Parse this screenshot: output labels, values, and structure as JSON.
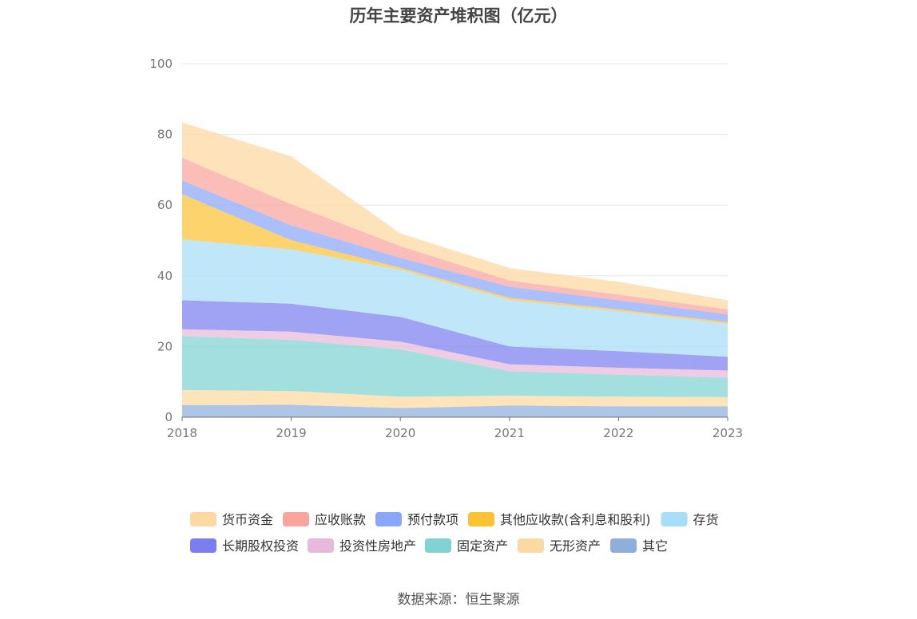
{
  "chart_data": {
    "type": "area",
    "stacked": true,
    "title": "历年主要资产堆积图（亿元）",
    "x": [
      "2018",
      "2019",
      "2020",
      "2021",
      "2022",
      "2023"
    ],
    "ylim": [
      0,
      100
    ],
    "yticks": [
      0,
      20,
      40,
      60,
      80,
      100
    ],
    "grid": true,
    "legend_position": "bottom",
    "series": [
      {
        "name": "其它",
        "color": "#8eaedc",
        "values": [
          3.4,
          3.5,
          2.6,
          3.3,
          3.1,
          3.1
        ]
      },
      {
        "name": "无形资产",
        "color": "#fcd9a0",
        "values": [
          4.3,
          3.9,
          3.2,
          2.8,
          2.7,
          2.6
        ]
      },
      {
        "name": "固定资产",
        "color": "#7fd3d3",
        "values": [
          15.2,
          14.5,
          13.4,
          6.9,
          6.2,
          5.5
        ]
      },
      {
        "name": "投资性房地产",
        "color": "#e8b9da",
        "values": [
          2.0,
          2.3,
          2.2,
          2.0,
          2.0,
          2.0
        ]
      },
      {
        "name": "长期股权投资",
        "color": "#7b7ef0",
        "values": [
          8.2,
          7.9,
          7.0,
          5.0,
          4.7,
          3.9
        ]
      },
      {
        "name": "存货",
        "color": "#a6def7",
        "values": [
          17.2,
          15.4,
          13.3,
          13.2,
          11.3,
          9.3
        ]
      },
      {
        "name": "其他应收款(含利息和股利)",
        "color": "#fbc234",
        "values": [
          12.8,
          2.6,
          0.6,
          0.6,
          0.5,
          0.5
        ]
      },
      {
        "name": "预付款项",
        "color": "#8aa6f9",
        "values": [
          3.9,
          4.2,
          2.8,
          3.1,
          2.6,
          2.2
        ]
      },
      {
        "name": "应收账款",
        "color": "#f9a49c",
        "values": [
          6.4,
          6.0,
          3.3,
          1.8,
          1.6,
          1.4
        ]
      },
      {
        "name": "货币资金",
        "color": "#fdd8a0",
        "values": [
          10.0,
          13.5,
          3.6,
          3.5,
          3.6,
          2.6
        ]
      }
    ],
    "legend_order": [
      "货币资金",
      "应收账款",
      "预付款项",
      "其他应收款(含利息和股利)",
      "存货",
      "长期股权投资",
      "投资性房地产",
      "固定资产",
      "无形资产",
      "其它"
    ]
  },
  "source": "数据来源：恒生聚源"
}
